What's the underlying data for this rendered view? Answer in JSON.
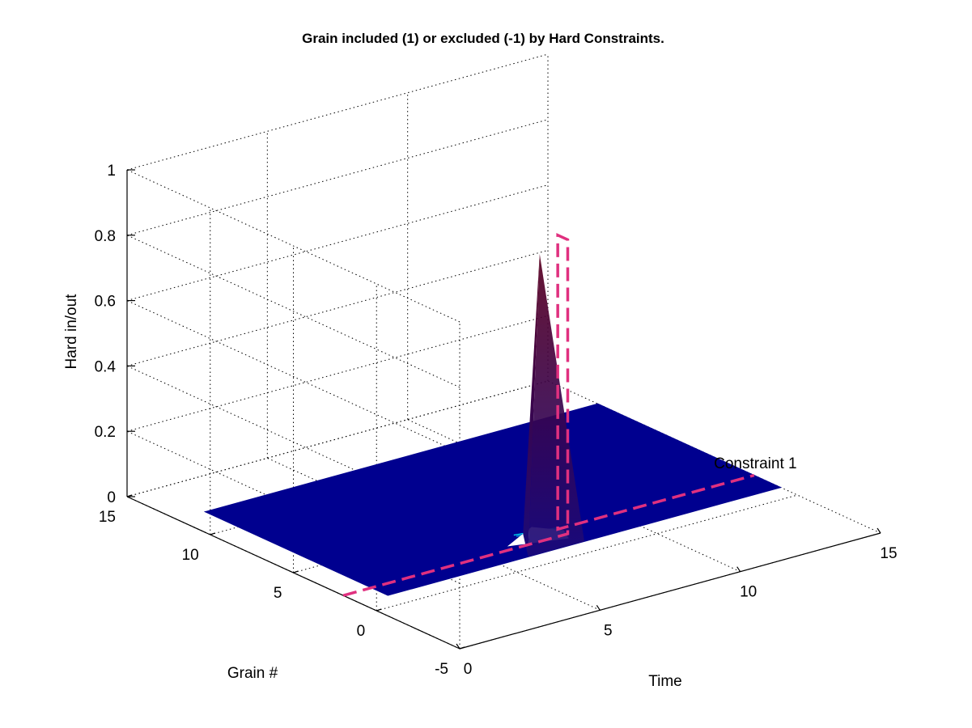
{
  "chart_data": {
    "type": "surface3d",
    "title": "Grain included (1) or excluded (-1) by Hard Constraints.",
    "xlabel": "Time",
    "ylabel": "Grain #",
    "zlabel": "Hard in/out",
    "xlim": [
      0,
      15
    ],
    "ylim": [
      -5,
      15
    ],
    "zlim": [
      0,
      1
    ],
    "xticks": [
      "0",
      "5",
      "10",
      "15"
    ],
    "yticks": [
      "-5",
      "0",
      "5",
      "10",
      "15"
    ],
    "zticks": [
      "0",
      "0.2",
      "0.4",
      "0.6",
      "0.8",
      "1"
    ],
    "grid": true,
    "surface": {
      "x_range": [
        1,
        15
      ],
      "y_range": [
        1,
        12
      ],
      "base_value": 0,
      "peak": {
        "x": 7,
        "y": 2,
        "z": 0.88
      },
      "colormap": "jet",
      "colors": {
        "low": "#00008f",
        "high": "#5a0020"
      }
    },
    "annotations": [
      {
        "text": "Constraint 1",
        "x": 15,
        "y": 2,
        "z": 0,
        "color": "#e0307f",
        "linestyle": "dashed",
        "path": [
          [
            0,
            2,
            0
          ],
          [
            8,
            2,
            0
          ],
          [
            8,
            2,
            0.9
          ],
          [
            8,
            2.6,
            0.9
          ],
          [
            8,
            2.6,
            0
          ],
          [
            15,
            2.6,
            0
          ]
        ]
      }
    ]
  }
}
